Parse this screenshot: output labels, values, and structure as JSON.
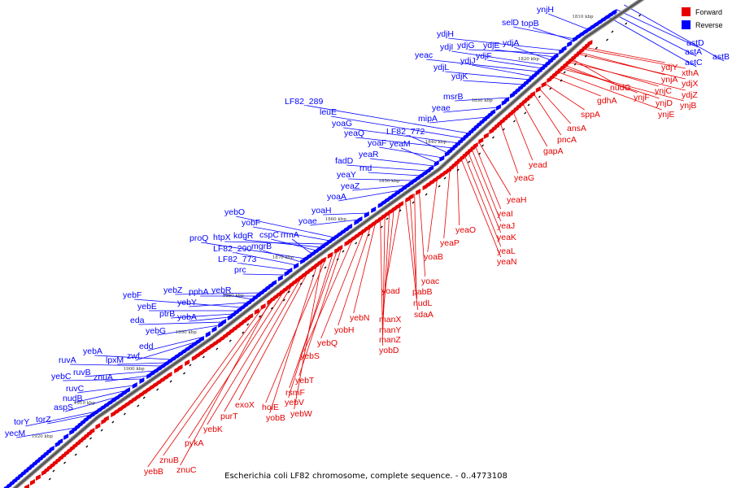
{
  "colors": {
    "forward": "#e60000",
    "reverse": "#0000ff",
    "backbone": "#555555"
  },
  "legend": {
    "forward": "Forward",
    "reverse": "Reverse"
  },
  "caption": "Escherichia coli LF82 chromosome, complete sequence. - 0..4773108",
  "ticks": [
    "1810 kbp",
    "1820 kbp",
    "1830 kbp",
    "1840 kbp",
    "1850 kbp",
    "1860 kbp",
    "1870 kbp",
    "1880 kbp",
    "1890 kbp",
    "1900 kbp",
    "1910 kbp",
    "1920 kbp"
  ],
  "reverse_genes": [
    "astB",
    "astD",
    "astA",
    "astC",
    "ynjH",
    "selD",
    "topB",
    "ydjH",
    "ydjG",
    "ydjE",
    "ydjA",
    "ydjI",
    "ydjF",
    "yeac",
    "ydjJ",
    "ydjL",
    "ydjK",
    "msrB",
    "yeae",
    "mipA",
    "LF82_289",
    "leuE",
    "yoaG",
    "yeaQ",
    "LF82_772",
    "yoaF",
    "yeaM",
    "yeaR",
    "fadD",
    "rnd",
    "yeaY",
    "yeaZ",
    "yoaA",
    "yoaH",
    "yoae",
    "yebO",
    "yobF",
    "htpX",
    "kdgR",
    "cspC",
    "rrmA",
    "proQ",
    "mgrB",
    "LF82_290",
    "LF82_773",
    "prc",
    "yebZ",
    "pphA",
    "yebR",
    "yebY",
    "yebF",
    "yebE",
    "ptrB",
    "yobA",
    "eda",
    "yebG",
    "edd",
    "zwf",
    "yebA",
    "lpxM",
    "ruvA",
    "ruvB",
    "znuA",
    "yebC",
    "ruvC",
    "nudB",
    "aspS",
    "torY",
    "torZ",
    "yecM"
  ],
  "forward_genes": [
    "ydjY",
    "xthA",
    "ynjA",
    "ydjX",
    "nudG",
    "ynjC",
    "ydjZ",
    "ynjF",
    "ynjD",
    "ynjB",
    "ynjE",
    "gdhA",
    "sppA",
    "ansA",
    "pncA",
    "gapA",
    "yead",
    "yeaG",
    "yeaH",
    "yeaI",
    "yeaJ",
    "yeaK",
    "yeaL",
    "yeaN",
    "yeaO",
    "yeaP",
    "yoaB",
    "yoac",
    "pabB",
    "nudL",
    "sdaA",
    "yoad",
    "manX",
    "manY",
    "manZ",
    "yobD",
    "yebN",
    "yobH",
    "yebQ",
    "yebS",
    "yebT",
    "rsmF",
    "yebV",
    "holE",
    "yebW",
    "yobB",
    "exoX",
    "purT",
    "yebK",
    "pykA",
    "znuB",
    "znuC",
    "yebB"
  ]
}
